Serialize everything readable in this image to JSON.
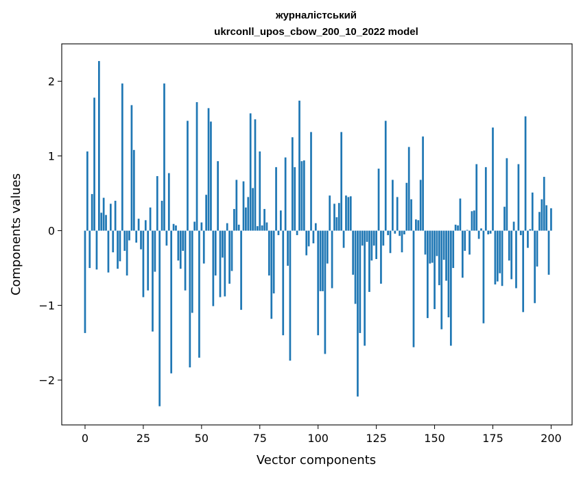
{
  "chart_data": {
    "type": "bar",
    "title_line1": "журналістський",
    "title_line2": "ukrconll_upos_cbow_200_10_2022 model",
    "xlabel": "Vector components",
    "ylabel": "Components values",
    "xlim": [
      -10,
      209
    ],
    "ylim": [
      -2.6,
      2.5
    ],
    "xticks": [
      0,
      25,
      50,
      75,
      100,
      125,
      150,
      175,
      200
    ],
    "yticks": [
      -2,
      -1,
      0,
      1,
      2
    ],
    "ytick_labels": [
      "−2",
      "−1",
      "0",
      "1",
      "2"
    ],
    "bar_color": "#1f77b4",
    "bar_width": 0.8,
    "grid": false,
    "values": [
      -1.37,
      1.06,
      -0.5,
      0.49,
      1.78,
      -0.52,
      2.27,
      0.24,
      0.44,
      0.21,
      -0.56,
      0.36,
      -0.29,
      0.4,
      -0.51,
      -0.41,
      1.97,
      -0.27,
      -0.6,
      -0.13,
      1.68,
      1.08,
      -0.16,
      0.16,
      -0.25,
      -0.89,
      0.14,
      -0.8,
      0.31,
      -1.35,
      -0.55,
      0.73,
      -2.35,
      0.4,
      1.97,
      -0.2,
      0.77,
      -1.91,
      0.09,
      0.07,
      -0.4,
      -0.51,
      -0.27,
      -0.8,
      1.47,
      -1.83,
      -1.1,
      0.12,
      1.72,
      -1.7,
      0.11,
      -0.44,
      0.48,
      1.64,
      1.46,
      -1.01,
      -0.6,
      0.93,
      -0.89,
      -0.36,
      -0.88,
      0.1,
      -0.71,
      -0.54,
      0.29,
      0.68,
      0.08,
      -1.06,
      0.66,
      0.31,
      0.45,
      1.57,
      0.57,
      1.49,
      0.06,
      1.06,
      0.07,
      0.29,
      0.11,
      -0.6,
      -1.18,
      -0.84,
      0.85,
      -0.06,
      0.27,
      -1.4,
      0.98,
      -0.47,
      -1.74,
      1.25,
      0.85,
      -0.06,
      1.74,
      0.93,
      0.94,
      -0.33,
      -0.21,
      1.32,
      -0.17,
      0.1,
      -1.4,
      -0.81,
      -0.81,
      -1.65,
      -0.44,
      0.47,
      -0.77,
      0.36,
      0.18,
      0.37,
      1.32,
      -0.23,
      0.47,
      0.45,
      0.46,
      -0.59,
      -0.98,
      -2.22,
      -1.37,
      -0.2,
      -1.54,
      -0.15,
      -0.82,
      -0.4,
      -0.2,
      -0.38,
      0.83,
      -0.71,
      -0.2,
      1.47,
      -0.06,
      -0.3,
      0.68,
      -0.04,
      0.45,
      -0.07,
      -0.29,
      -0.05,
      0.64,
      1.12,
      0.42,
      -1.56,
      0.15,
      0.14,
      0.68,
      1.26,
      -0.32,
      -1.17,
      -0.44,
      -0.43,
      -1.05,
      -0.34,
      -0.73,
      -1.32,
      -0.39,
      -0.67,
      -1.16,
      -1.54,
      -0.5,
      0.08,
      0.07,
      0.43,
      -0.63,
      -0.27,
      0.01,
      -0.32,
      0.26,
      0.27,
      0.89,
      -0.11,
      0.03,
      -1.24,
      0.85,
      -0.05,
      -0.04,
      1.38,
      -0.72,
      -0.68,
      -0.57,
      -0.74,
      0.32,
      0.97,
      -0.4,
      -0.65,
      0.12,
      -0.77,
      0.89,
      -0.06,
      -1.09,
      1.53,
      -0.23,
      0.02,
      0.51,
      -0.97,
      -0.48,
      0.25,
      0.42,
      0.72,
      0.34,
      -0.59,
      0.3
    ]
  }
}
